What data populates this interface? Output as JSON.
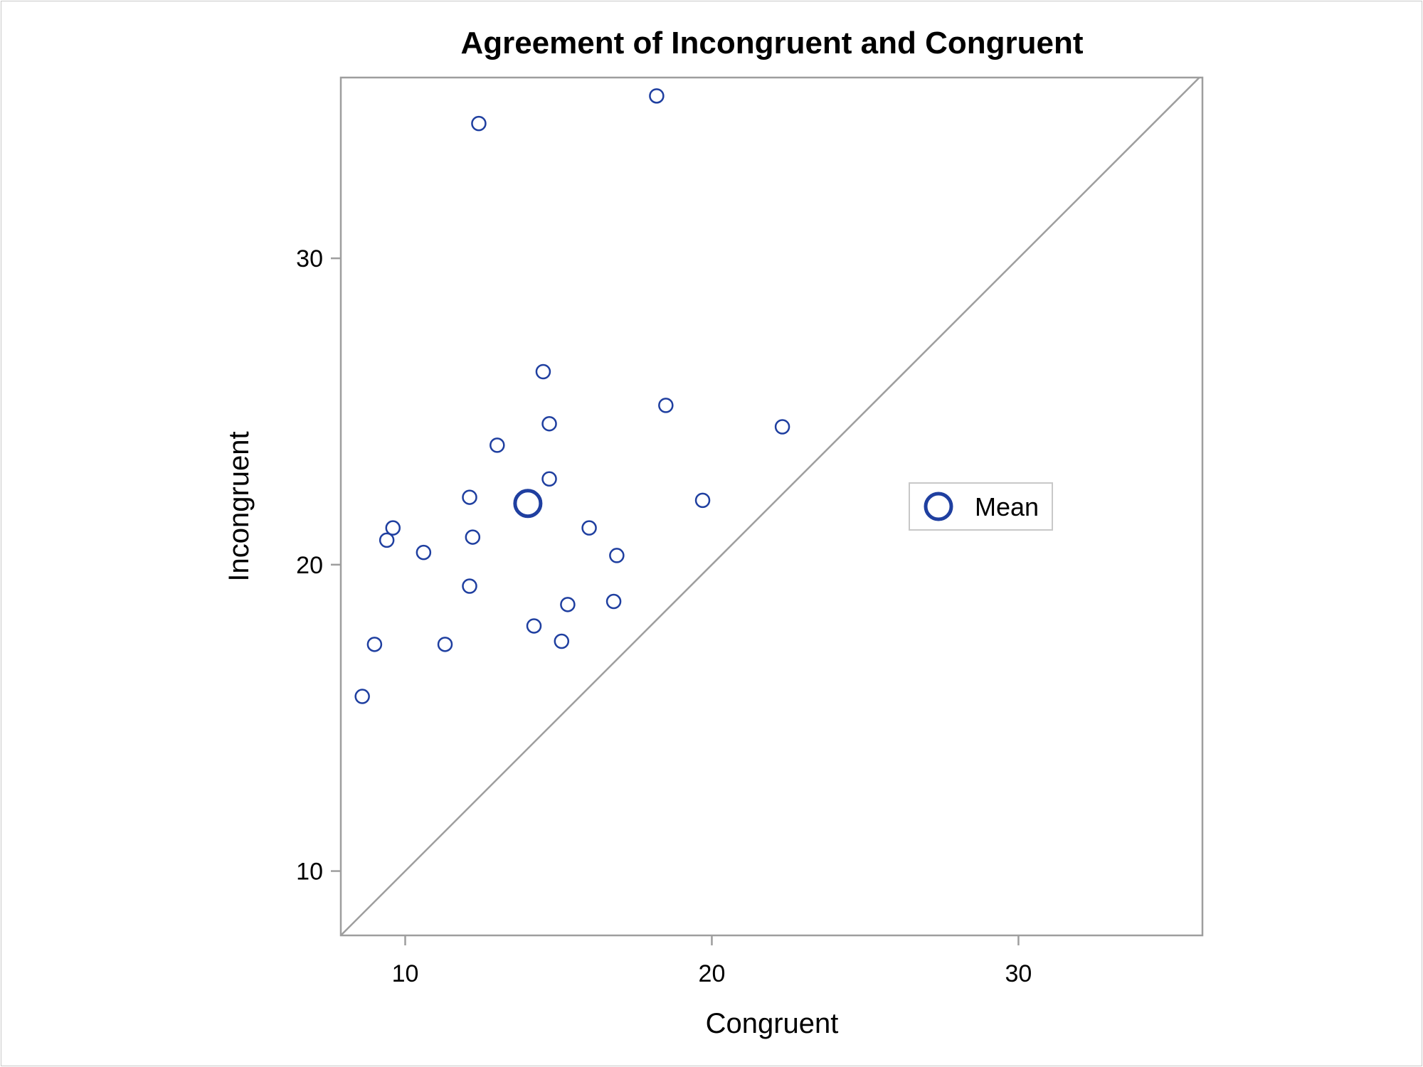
{
  "chart_data": {
    "type": "scatter",
    "title": "Agreement of Incongruent and Congruent",
    "xlabel": "Congruent",
    "ylabel": "Incongruent",
    "xlim": [
      7.9,
      36.0
    ],
    "ylim": [
      7.9,
      35.9
    ],
    "x_ticks": [
      10,
      20,
      30
    ],
    "y_ticks": [
      10,
      20,
      30
    ],
    "x_tick_labels": [
      "10",
      "20",
      "30"
    ],
    "y_tick_labels": [
      "10",
      "20",
      "30"
    ],
    "grid": false,
    "reference_line": "identity (y = x)",
    "series": [
      {
        "type": "scatter",
        "marker": "open-circle",
        "color": "#1f3fa0",
        "points": [
          {
            "x": 8.6,
            "y": 15.7
          },
          {
            "x": 9.0,
            "y": 17.4
          },
          {
            "x": 9.4,
            "y": 20.8
          },
          {
            "x": 9.6,
            "y": 21.2
          },
          {
            "x": 10.6,
            "y": 20.4
          },
          {
            "x": 11.3,
            "y": 17.4
          },
          {
            "x": 12.1,
            "y": 19.3
          },
          {
            "x": 12.1,
            "y": 22.2
          },
          {
            "x": 12.2,
            "y": 20.9
          },
          {
            "x": 12.4,
            "y": 34.4
          },
          {
            "x": 13.0,
            "y": 23.9
          },
          {
            "x": 14.2,
            "y": 18.0
          },
          {
            "x": 14.5,
            "y": 26.3
          },
          {
            "x": 14.7,
            "y": 22.8
          },
          {
            "x": 14.7,
            "y": 24.6
          },
          {
            "x": 15.1,
            "y": 17.5
          },
          {
            "x": 15.3,
            "y": 18.7
          },
          {
            "x": 16.0,
            "y": 21.2
          },
          {
            "x": 16.8,
            "y": 18.8
          },
          {
            "x": 16.9,
            "y": 20.3
          },
          {
            "x": 18.2,
            "y": 35.3
          },
          {
            "x": 18.5,
            "y": 25.2
          },
          {
            "x": 19.7,
            "y": 22.1
          },
          {
            "x": 22.3,
            "y": 24.5
          }
        ]
      },
      {
        "name": "Mean",
        "type": "scatter",
        "marker": "open-circle-large",
        "color": "#1f3fa0",
        "points": [
          {
            "x": 14.0,
            "y": 22.0
          }
        ]
      }
    ],
    "legend": {
      "entries": [
        "Mean"
      ],
      "placement": "right"
    }
  }
}
